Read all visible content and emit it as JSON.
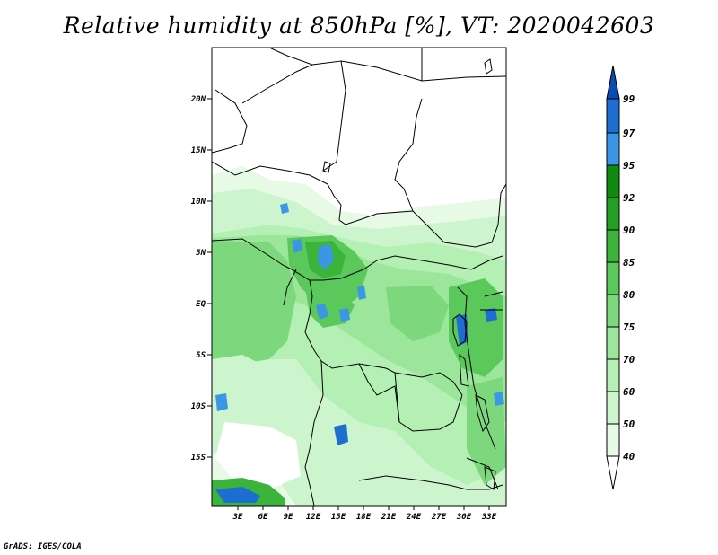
{
  "title": "Relative humidity at 850hPa [%], VT: 2020042603",
  "credit": "GrADS: IGES/COLA",
  "lat_labels": [
    "20N",
    "15N",
    "10N",
    "5N",
    "EQ",
    "5S",
    "10S",
    "15S"
  ],
  "lon_labels": [
    "3E",
    "6E",
    "9E",
    "12E",
    "15E",
    "18E",
    "21E",
    "24E",
    "27E",
    "30E",
    "33E"
  ],
  "colorbar": {
    "labels": [
      "40",
      "50",
      "60",
      "70",
      "75",
      "80",
      "85",
      "90",
      "92",
      "95",
      "97",
      "99"
    ],
    "colors": [
      "#ffffff",
      "#e6fae6",
      "#cdf5cd",
      "#b4f0b4",
      "#9be69b",
      "#7dd77d",
      "#5ac85a",
      "#3cb43c",
      "#23a023",
      "#0f8c0f",
      "#3c96e6",
      "#1e6ed2",
      "#0a4bb4"
    ]
  }
}
